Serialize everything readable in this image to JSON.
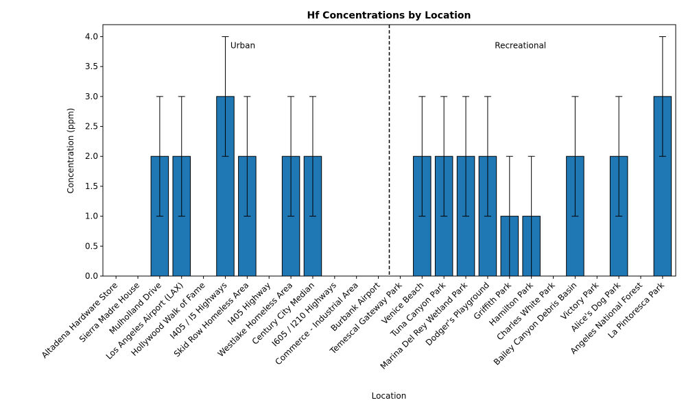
{
  "chart_data": {
    "type": "bar",
    "title": "Hf Concentrations by Location",
    "xlabel": "Location",
    "ylabel": "Concentration (ppm)",
    "ylim": [
      0,
      4.2
    ],
    "yticks": [
      0.0,
      0.5,
      1.0,
      1.5,
      2.0,
      2.5,
      3.0,
      3.5,
      4.0
    ],
    "ytick_labels": [
      "0.0",
      "0.5",
      "1.0",
      "1.5",
      "2.0",
      "2.5",
      "3.0",
      "3.5",
      "4.0"
    ],
    "grid": false,
    "bar_color": "#1f77b4",
    "edge_color": "#000000",
    "categories": [
      "Altadena Hardware Store",
      "Sierra Madre House",
      "Mulholland Drive",
      "Los Angeles Airport (LAX)",
      "Hollywood Walk of Fame",
      "I405 / I5 Highways",
      "Skid Row Homeless Area",
      "I405 Highway",
      "Westlake Homeless Area",
      "Century City Median",
      "I605 / I210 Highways",
      "Commerce - Industrial Area",
      "Burbank Airport",
      "Temescal Gateway Park",
      "Venice Beach",
      "Tuna Canyon Park",
      "Marina Del Rey Wetland Park",
      "Dodger's Playground",
      "Griffith Park",
      "Hamilton Park",
      "Charles White Park",
      "Bailey Canyon Debris Basin",
      "Victory Park",
      "Alice's Dog Park",
      "Angeles National Forest",
      "La Pintoresca Park"
    ],
    "values": [
      0,
      0,
      2,
      2,
      0,
      3,
      2,
      0,
      2,
      2,
      0,
      0,
      0,
      0,
      2,
      2,
      2,
      2,
      1,
      1,
      0,
      2,
      0,
      2,
      0,
      3
    ],
    "errors": [
      0,
      0,
      1,
      1,
      0,
      1,
      1,
      0,
      1,
      1,
      0,
      0,
      0,
      0,
      1,
      1,
      1,
      1,
      1,
      1,
      0,
      1,
      0,
      1,
      0,
      1
    ],
    "divider_after_index": 12,
    "annotations": [
      {
        "text": "Urban",
        "x_index": 5.8,
        "y": 3.85
      },
      {
        "text": "Recreational",
        "x_index": 18.5,
        "y": 3.85
      }
    ]
  }
}
